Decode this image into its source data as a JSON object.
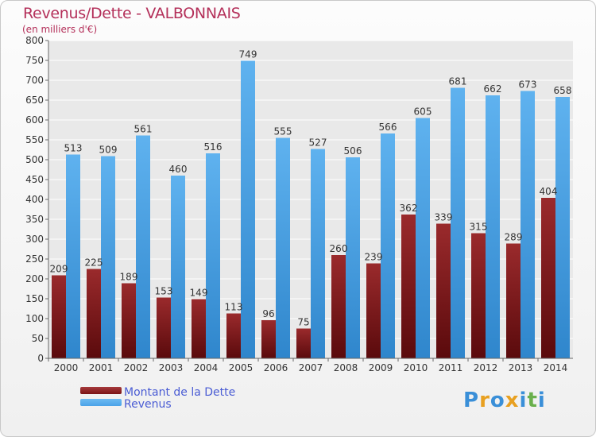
{
  "header": {
    "title": "Revenus/Dette - VALBONNAIS",
    "subtitle": "(en milliers d'€)"
  },
  "legend": {
    "items": [
      {
        "label": "Montant de la Dette",
        "color": "#7a1416"
      },
      {
        "label": "Revenus",
        "color": "#4aa3e8"
      }
    ]
  },
  "logo": {
    "text": "Proxiti"
  },
  "colors": {
    "dette": "#7a1416",
    "dette_light": "#a63a3c",
    "revenus": "#4aa3e8",
    "revenus_light": "#6dbaf2",
    "grid": "#ffffff",
    "axis_text": "#333333"
  },
  "chart_data": {
    "type": "bar",
    "title": "Revenus/Dette - VALBONNAIS",
    "subtitle": "(en milliers d'€)",
    "xlabel": "",
    "ylabel": "",
    "ylim": [
      0,
      800
    ],
    "yticks": [
      0,
      50,
      100,
      150,
      200,
      250,
      300,
      350,
      400,
      450,
      500,
      550,
      600,
      650,
      700,
      750,
      800
    ],
    "grid": true,
    "legend_position": "bottom-left",
    "categories": [
      "2000",
      "2001",
      "2002",
      "2003",
      "2004",
      "2005",
      "2006",
      "2007",
      "2008",
      "2009",
      "2010",
      "2011",
      "2012",
      "2013",
      "2014"
    ],
    "series": [
      {
        "name": "Montant de la Dette",
        "values": [
          209,
          225,
          189,
          153,
          149,
          113,
          96,
          75,
          260,
          239,
          362,
          339,
          315,
          289,
          404
        ]
      },
      {
        "name": "Revenus",
        "values": [
          513,
          509,
          561,
          460,
          516,
          749,
          555,
          527,
          506,
          566,
          605,
          681,
          662,
          673,
          658
        ]
      }
    ]
  }
}
